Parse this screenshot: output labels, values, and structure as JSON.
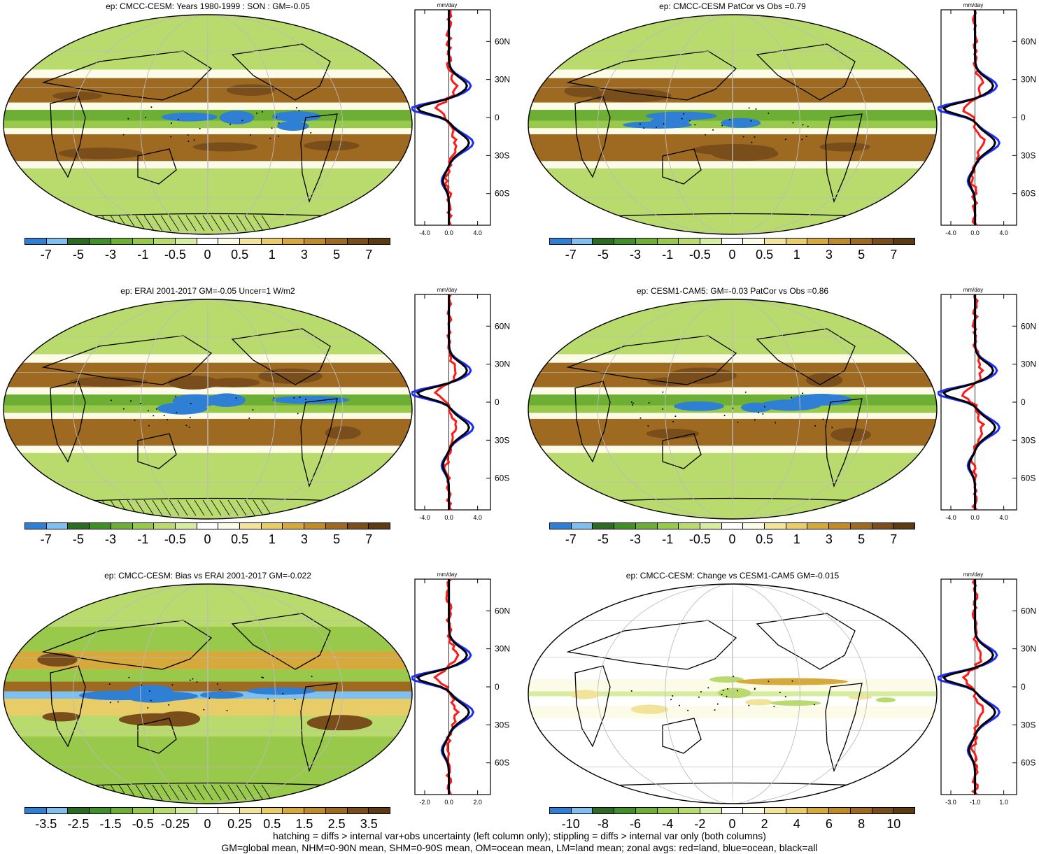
{
  "palette": [
    "#2f7fd4",
    "#7fbfef",
    "#2b6b22",
    "#3f8f2a",
    "#6caf34",
    "#98c94a",
    "#b9db6e",
    "#d6eca0",
    "#ffffff",
    "#fbfbe8",
    "#f2e39a",
    "#e7cc67",
    "#d6a93c",
    "#bf8a2a",
    "#9e6a22",
    "#7a4e1a",
    "#5c3a12"
  ],
  "panels": [
    {
      "title": "ep: CMCC-CESM: Years 1980-1999 : SON : GM=-0.05",
      "colorbar_labels": [
        "-7",
        "-5",
        "-3",
        "-1",
        "-0.5",
        "0",
        "0.5",
        "1",
        "3",
        "5",
        "7"
      ],
      "profile_ticks": [
        "-4.0",
        "0.0",
        "4.0"
      ]
    },
    {
      "title": "ep: CMCC-CESM PatCor vs Obs =0.79",
      "colorbar_labels": [
        "-7",
        "-5",
        "-3",
        "-1",
        "-0.5",
        "0",
        "0.5",
        "1",
        "3",
        "5",
        "7"
      ],
      "profile_ticks": [
        "-4.0",
        "0.0",
        "4.0"
      ]
    },
    {
      "title": "ep: ERAI 2001-2017 GM=-0.05 Uncer=1 W/m2",
      "colorbar_labels": [
        "-7",
        "-5",
        "-3",
        "-1",
        "-0.5",
        "0",
        "0.5",
        "1",
        "3",
        "5",
        "7"
      ],
      "profile_ticks": [
        "-4.0",
        "0.0",
        "4.0"
      ]
    },
    {
      "title": "ep: CESM1-CAM5: GM=-0.03 PatCor vs Obs =0.86",
      "colorbar_labels": [
        "-7",
        "-5",
        "-3",
        "-1",
        "-0.5",
        "0",
        "0.5",
        "1",
        "3",
        "5",
        "7"
      ],
      "profile_ticks": [
        "-4.0",
        "0.0",
        "4.0"
      ]
    },
    {
      "title": "ep: CMCC-CESM: Bias vs ERAI 2001-2017  GM=-0.022",
      "colorbar_labels": [
        "-3.5",
        "-2.5",
        "-1.5",
        "-0.5",
        "-0.25",
        "0",
        "0.25",
        "0.5",
        "1.5",
        "2.5",
        "3.5"
      ],
      "profile_ticks": [
        "-2.0",
        "0.0",
        "2.0"
      ]
    },
    {
      "title": "ep: CMCC-CESM: Change vs CESM1-CAM5 GM=-0.015",
      "colorbar_labels": [
        "-10",
        "-8",
        "-6",
        "-4",
        "-2",
        "0",
        "2",
        "4",
        "6",
        "8",
        "10"
      ],
      "profile_ticks": [
        "-3.0",
        "-1.0",
        "1.0"
      ]
    }
  ],
  "profile_unit": "mm/day",
  "lat_labels": [
    "60N",
    "30N",
    "0",
    "30S",
    "60S"
  ],
  "footer": [
    "hatching = diffs > internal var+obs uncertainty (left column only); stippling = diffs > internal var only (both columns)",
    "GM=global mean, NHM=0-90N mean, SHM=0-90S mean, OM=ocean mean, LM=land mean; zonal avgs: red=land, blue=ocean, black=all"
  ],
  "chart_data": [
    {
      "type": "heatmap",
      "title": "ep: CMCC-CESM: Years 1980-1999 : SON : GM=-0.05",
      "color_levels": [
        -7,
        -5,
        -3,
        -1,
        -0.5,
        0,
        0.5,
        1,
        3,
        5,
        7
      ]
    },
    {
      "type": "heatmap",
      "title": "ep: CMCC-CESM PatCor vs Obs =0.79",
      "color_levels": [
        -7,
        -5,
        -3,
        -1,
        -0.5,
        0,
        0.5,
        1,
        3,
        5,
        7
      ]
    },
    {
      "type": "heatmap",
      "title": "ep: ERAI 2001-2017 GM=-0.05 Uncer=1 W/m2",
      "color_levels": [
        -7,
        -5,
        -3,
        -1,
        -0.5,
        0,
        0.5,
        1,
        3,
        5,
        7
      ]
    },
    {
      "type": "heatmap",
      "title": "ep: CESM1-CAM5: GM=-0.03 PatCor vs Obs =0.86",
      "color_levels": [
        -7,
        -5,
        -3,
        -1,
        -0.5,
        0,
        0.5,
        1,
        3,
        5,
        7
      ]
    },
    {
      "type": "heatmap",
      "title": "ep: CMCC-CESM: Bias vs ERAI 2001-2017  GM=-0.022",
      "color_levels": [
        -3.5,
        -2.5,
        -1.5,
        -0.5,
        -0.25,
        0,
        0.25,
        0.5,
        1.5,
        2.5,
        3.5
      ]
    },
    {
      "type": "heatmap",
      "title": "ep: CMCC-CESM: Change vs CESM1-CAM5 GM=-0.015",
      "color_levels": [
        -10,
        -8,
        -6,
        -4,
        -2,
        0,
        2,
        4,
        6,
        8,
        10
      ]
    }
  ]
}
